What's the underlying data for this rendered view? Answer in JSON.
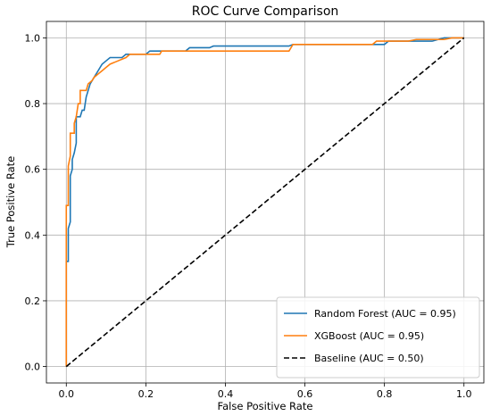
{
  "chart_data": {
    "type": "line",
    "title": "ROC Curve Comparison",
    "xlabel": "False Positive Rate",
    "ylabel": "True Positive Rate",
    "xlim": [
      -0.05,
      1.05
    ],
    "ylim": [
      -0.05,
      1.05
    ],
    "xticks": [
      0.0,
      0.2,
      0.4,
      0.6,
      0.8,
      1.0
    ],
    "yticks": [
      0.0,
      0.2,
      0.4,
      0.6,
      0.8,
      1.0
    ],
    "xtick_labels": [
      "0.0",
      "0.2",
      "0.4",
      "0.6",
      "0.8",
      "1.0"
    ],
    "ytick_labels": [
      "0.0",
      "0.2",
      "0.4",
      "0.6",
      "0.8",
      "1.0"
    ],
    "grid": true,
    "legend_position": "bottom-right",
    "series": [
      {
        "name": "Random Forest (AUC = 0.95)",
        "color": "#1f77b4",
        "dash": "solid",
        "points": [
          [
            0,
            0
          ],
          [
            0,
            0.32
          ],
          [
            0.005,
            0.32
          ],
          [
            0.005,
            0.42
          ],
          [
            0.01,
            0.44
          ],
          [
            0.01,
            0.58
          ],
          [
            0.015,
            0.6
          ],
          [
            0.015,
            0.63
          ],
          [
            0.02,
            0.65
          ],
          [
            0.025,
            0.68
          ],
          [
            0.025,
            0.76
          ],
          [
            0.035,
            0.76
          ],
          [
            0.04,
            0.78
          ],
          [
            0.045,
            0.78
          ],
          [
            0.05,
            0.82
          ],
          [
            0.055,
            0.84
          ],
          [
            0.06,
            0.86
          ],
          [
            0.07,
            0.88
          ],
          [
            0.075,
            0.89
          ],
          [
            0.08,
            0.9
          ],
          [
            0.09,
            0.92
          ],
          [
            0.1,
            0.93
          ],
          [
            0.11,
            0.94
          ],
          [
            0.14,
            0.94
          ],
          [
            0.15,
            0.95
          ],
          [
            0.2,
            0.95
          ],
          [
            0.21,
            0.96
          ],
          [
            0.3,
            0.96
          ],
          [
            0.31,
            0.97
          ],
          [
            0.36,
            0.97
          ],
          [
            0.37,
            0.975
          ],
          [
            0.56,
            0.975
          ],
          [
            0.57,
            0.98
          ],
          [
            0.8,
            0.98
          ],
          [
            0.81,
            0.99
          ],
          [
            0.92,
            0.99
          ],
          [
            0.95,
            1.0
          ],
          [
            1.0,
            1.0
          ]
        ]
      },
      {
        "name": "XGBoost (AUC = 0.95)",
        "color": "#ff7f0e",
        "dash": "solid",
        "points": [
          [
            0,
            0
          ],
          [
            0,
            0.49
          ],
          [
            0.005,
            0.49
          ],
          [
            0.005,
            0.61
          ],
          [
            0.01,
            0.64
          ],
          [
            0.01,
            0.71
          ],
          [
            0.02,
            0.71
          ],
          [
            0.02,
            0.74
          ],
          [
            0.025,
            0.76
          ],
          [
            0.03,
            0.8
          ],
          [
            0.035,
            0.8
          ],
          [
            0.035,
            0.84
          ],
          [
            0.05,
            0.84
          ],
          [
            0.055,
            0.86
          ],
          [
            0.065,
            0.87
          ],
          [
            0.07,
            0.88
          ],
          [
            0.08,
            0.89
          ],
          [
            0.09,
            0.9
          ],
          [
            0.1,
            0.91
          ],
          [
            0.11,
            0.92
          ],
          [
            0.13,
            0.93
          ],
          [
            0.15,
            0.94
          ],
          [
            0.16,
            0.95
          ],
          [
            0.235,
            0.95
          ],
          [
            0.24,
            0.96
          ],
          [
            0.56,
            0.96
          ],
          [
            0.57,
            0.98
          ],
          [
            0.77,
            0.98
          ],
          [
            0.78,
            0.99
          ],
          [
            0.86,
            0.99
          ],
          [
            0.88,
            0.995
          ],
          [
            0.95,
            0.995
          ],
          [
            0.97,
            1.0
          ],
          [
            1.0,
            1.0
          ]
        ]
      },
      {
        "name": "Baseline (AUC = 0.50)",
        "color": "#000000",
        "dash": "dashed",
        "points": [
          [
            0,
            0
          ],
          [
            1,
            1
          ]
        ]
      }
    ]
  }
}
